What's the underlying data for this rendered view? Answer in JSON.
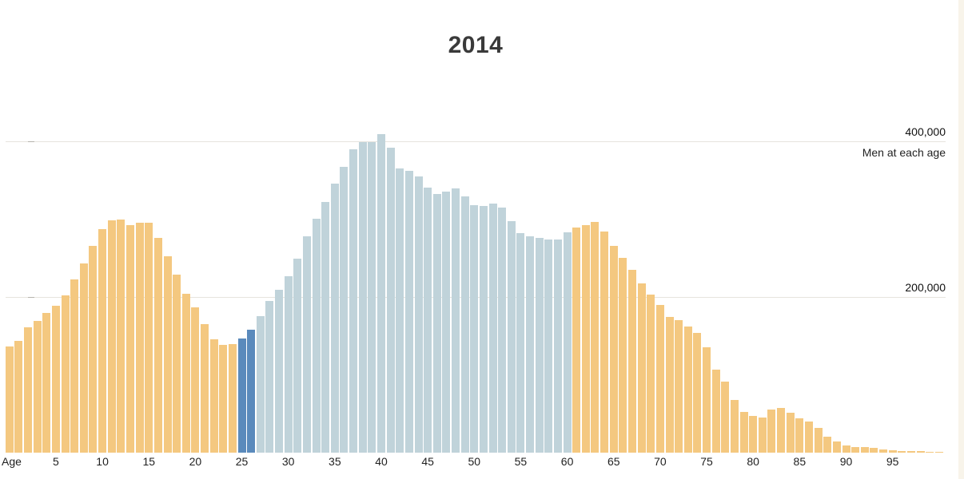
{
  "title": "2014",
  "y_axis": {
    "gridlines": [
      {
        "label": "400,000",
        "value": 400000,
        "series_label_below": "Men at each age"
      },
      {
        "label": "200,000",
        "value": 200000
      }
    ],
    "series_label": "Men at each age"
  },
  "x_axis": {
    "label": "Age",
    "ticks": [
      5,
      10,
      15,
      20,
      25,
      30,
      35,
      40,
      45,
      50,
      55,
      60,
      65,
      70,
      75,
      80,
      85,
      90,
      95
    ]
  },
  "colors": {
    "orange": "#f4c880",
    "highlight_blue": "#5a8abc",
    "light_blue": "#c0d3da",
    "gridline": "#e6e4de",
    "tick_mark": "#b5b3ac",
    "title_text": "#3a3a3a",
    "axis_text": "#1f1f1f",
    "background": "#ffffff",
    "right_edge_strip": "#f8f4ea"
  },
  "chart_data": {
    "type": "bar",
    "title": "2014",
    "ylabel": "Men at each age",
    "xlabel": "Age",
    "ylim": [
      0,
      420000
    ],
    "grid": "horizontal-only",
    "legend_position": "none",
    "gridline_values": [
      400000,
      200000
    ],
    "x_tick_ages": [
      5,
      10,
      15,
      20,
      25,
      30,
      35,
      40,
      45,
      50,
      55,
      60,
      65,
      70,
      75,
      80,
      85,
      90,
      95
    ],
    "ages": [
      0,
      1,
      2,
      3,
      4,
      5,
      6,
      7,
      8,
      9,
      10,
      11,
      12,
      13,
      14,
      15,
      16,
      17,
      18,
      19,
      20,
      21,
      22,
      23,
      24,
      25,
      26,
      27,
      28,
      29,
      30,
      31,
      32,
      33,
      34,
      35,
      36,
      37,
      38,
      39,
      40,
      41,
      42,
      43,
      44,
      45,
      46,
      47,
      48,
      49,
      50,
      51,
      52,
      53,
      54,
      55,
      56,
      57,
      58,
      59,
      60,
      61,
      62,
      63,
      64,
      65,
      66,
      67,
      68,
      69,
      70,
      71,
      72,
      73,
      74,
      75,
      76,
      77,
      78,
      79,
      80,
      81,
      82,
      83,
      84,
      85,
      86,
      87,
      88,
      89,
      90,
      91,
      92,
      93,
      94,
      95,
      96,
      97,
      98,
      99,
      100
    ],
    "values": [
      136000,
      144000,
      161000,
      169000,
      180000,
      189000,
      202000,
      223000,
      243000,
      266000,
      287000,
      298000,
      300000,
      292000,
      295000,
      295000,
      276000,
      252000,
      229000,
      204000,
      187000,
      165000,
      146000,
      138000,
      140000,
      147000,
      158000,
      175000,
      195000,
      209000,
      227000,
      249000,
      278000,
      301000,
      322000,
      346000,
      367000,
      390000,
      399000,
      399000,
      409000,
      392000,
      365000,
      362000,
      355000,
      341000,
      332000,
      335000,
      339000,
      329000,
      318000,
      317000,
      320000,
      315000,
      297000,
      282000,
      278000,
      276000,
      274000,
      274000,
      283000,
      289000,
      292000,
      296000,
      284000,
      266000,
      250000,
      235000,
      217000,
      203000,
      190000,
      174000,
      170000,
      162000,
      154000,
      135000,
      107000,
      91000,
      68000,
      52000,
      47000,
      45000,
      55000,
      57000,
      51000,
      44000,
      40000,
      32000,
      21000,
      14000,
      9000,
      7000,
      7000,
      6000,
      4000,
      3500,
      2500,
      2000,
      1700,
      1400,
      1000
    ],
    "color_groups": [
      {
        "from": 0,
        "to": 24,
        "color": "orange"
      },
      {
        "from": 25,
        "to": 26,
        "color": "highlight_blue"
      },
      {
        "from": 27,
        "to": 60,
        "color": "light_blue"
      },
      {
        "from": 61,
        "to": 100,
        "color": "orange"
      }
    ]
  }
}
